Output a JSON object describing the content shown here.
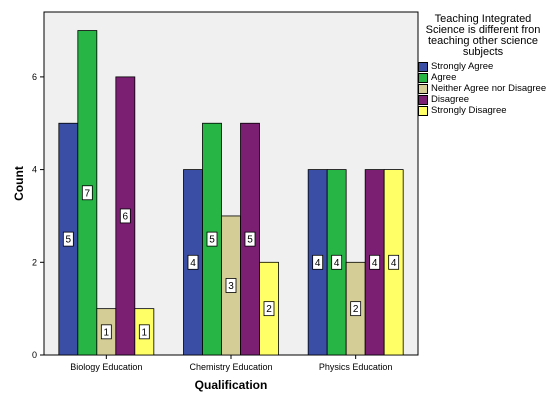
{
  "chart_data": {
    "type": "bar",
    "xlabel": "Qualification",
    "ylabel": "Count",
    "ylim": [
      0,
      7.4
    ],
    "yticks": [
      0,
      2,
      4,
      6
    ],
    "grid": false,
    "legend_position": "right",
    "legend_title": "Teaching Integrated Science is different fron teaching other science subjects",
    "categories": [
      "Biology Education",
      "Chemistry Education",
      "Physics Education"
    ],
    "series": [
      {
        "name": "Strongly Agree",
        "color": "#3a4ea5",
        "values": [
          5,
          4,
          4
        ]
      },
      {
        "name": "Agree",
        "color": "#27b546",
        "values": [
          7,
          5,
          4
        ]
      },
      {
        "name": "Neither Agree nor Disagree",
        "color": "#d4cd96",
        "values": [
          1,
          3,
          2
        ]
      },
      {
        "name": "Disagree",
        "color": "#7a1f72",
        "values": [
          6,
          5,
          4
        ]
      },
      {
        "name": "Strongly Disagree",
        "color": "#ffff66",
        "values": [
          1,
          2,
          4
        ]
      }
    ],
    "plot_background": "#f0f0f0"
  }
}
